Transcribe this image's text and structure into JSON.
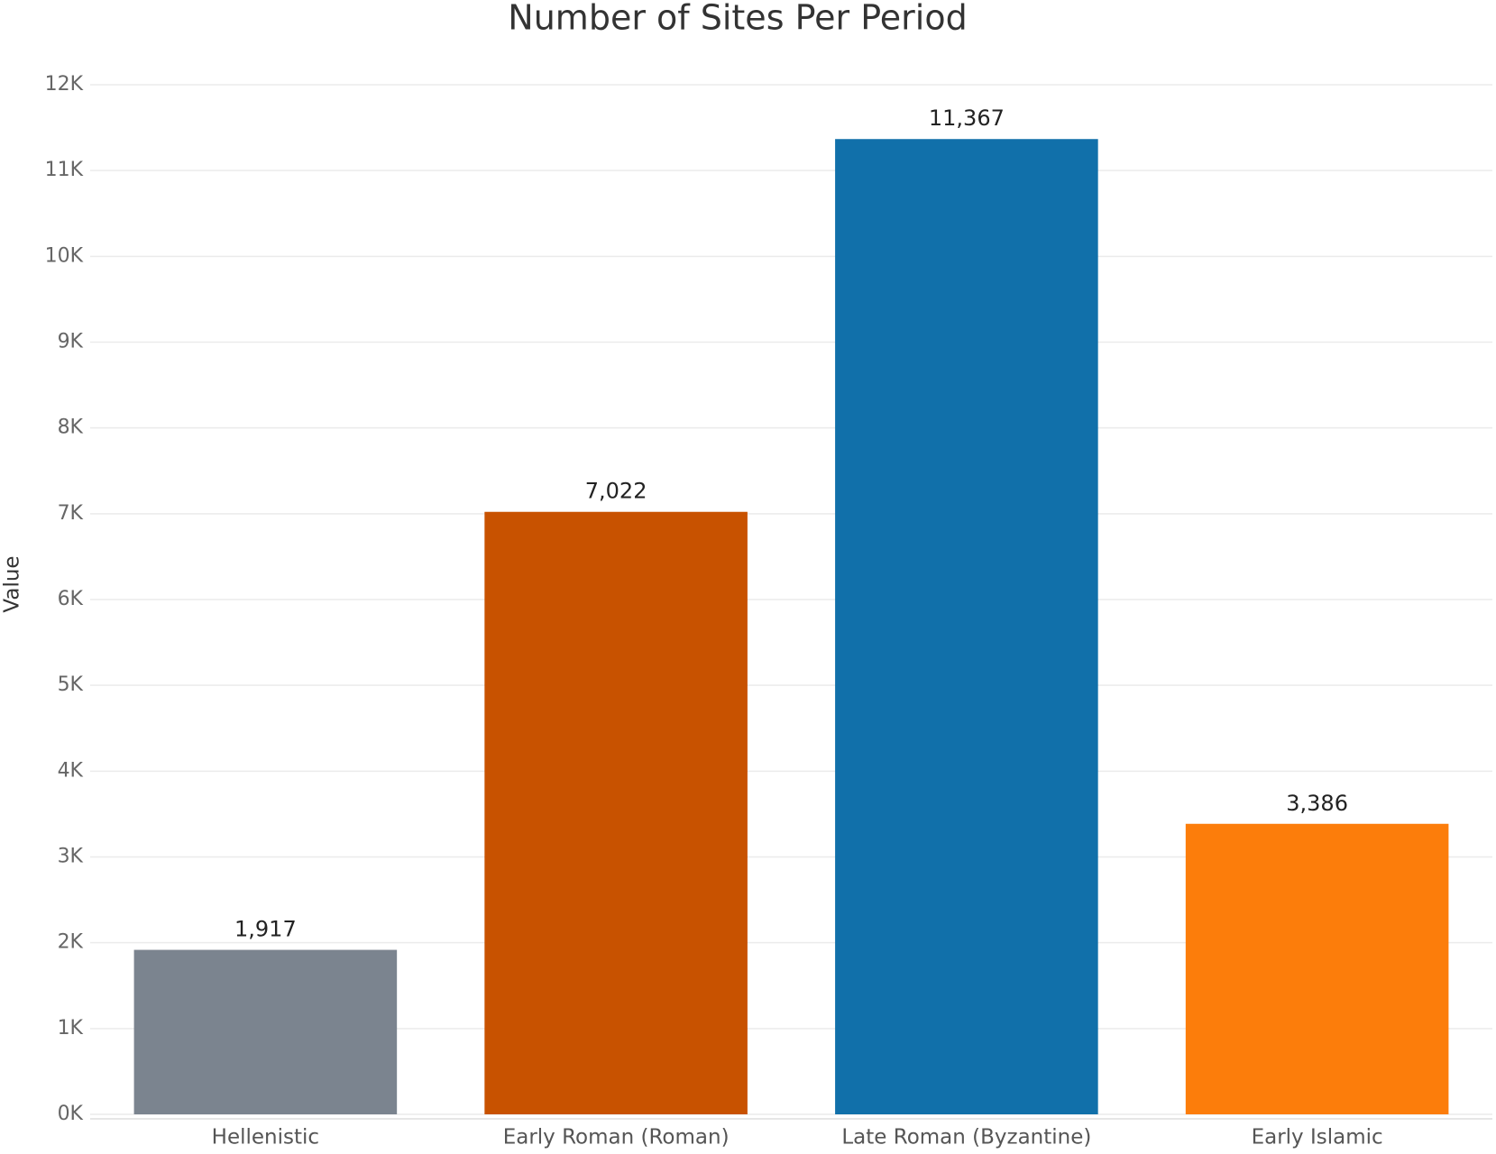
{
  "chart_data": {
    "type": "bar",
    "title": "Number of Sites Per Period",
    "y_label": "Value",
    "categories": [
      "Hellenistic",
      "Early Roman (Roman)",
      "Late Roman (Byzantine)",
      "Early Islamic"
    ],
    "values": [
      1917,
      7022,
      11367,
      3386
    ],
    "value_labels": [
      "1,917",
      "7,022",
      "11,367",
      "3,386"
    ],
    "colors": [
      "#7b848f",
      "#c85200",
      "#1170aa",
      "#fc7d0b"
    ],
    "ylim": [
      0,
      12000
    ],
    "yticks": [
      {
        "value": 0,
        "label": "0K"
      },
      {
        "value": 1000,
        "label": "1K"
      },
      {
        "value": 2000,
        "label": "2K"
      },
      {
        "value": 3000,
        "label": "3K"
      },
      {
        "value": 4000,
        "label": "4K"
      },
      {
        "value": 5000,
        "label": "5K"
      },
      {
        "value": 6000,
        "label": "6K"
      },
      {
        "value": 7000,
        "label": "7K"
      },
      {
        "value": 8000,
        "label": "8K"
      },
      {
        "value": 9000,
        "label": "9K"
      },
      {
        "value": 10000,
        "label": "10K"
      },
      {
        "value": 11000,
        "label": "11K"
      },
      {
        "value": 12000,
        "label": "12K"
      }
    ],
    "grid": true
  }
}
